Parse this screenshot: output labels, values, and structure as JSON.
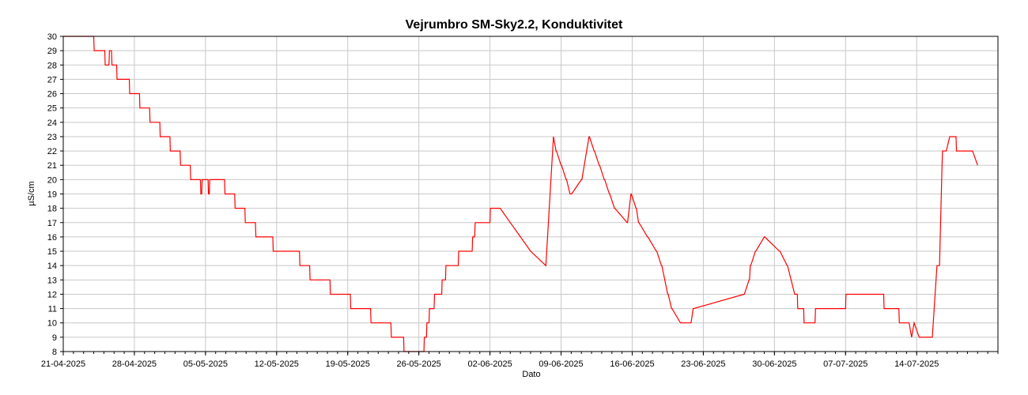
{
  "chart_data": {
    "type": "line",
    "title": "Vejrumbro SM-Sky2.2, Konduktivitet",
    "xlabel": "Dato",
    "ylabel": "µS/cm",
    "xlim": [
      "2025-04-21",
      "2025-07-22"
    ],
    "ylim": [
      8,
      30
    ],
    "yticks": [
      8,
      9,
      10,
      11,
      12,
      13,
      14,
      15,
      16,
      17,
      18,
      19,
      20,
      21,
      22,
      23,
      24,
      25,
      26,
      27,
      28,
      29,
      30
    ],
    "xticks": [
      "2025-04-21",
      "2025-04-28",
      "2025-05-05",
      "2025-05-12",
      "2025-05-19",
      "2025-05-26",
      "2025-06-02",
      "2025-06-09",
      "2025-06-16",
      "2025-06-23",
      "2025-06-30",
      "2025-07-07",
      "2025-07-14"
    ],
    "xtick_labels": [
      "21-04-2025",
      "28-04-2025",
      "05-05-2025",
      "12-05-2025",
      "19-05-2025",
      "26-05-2025",
      "02-06-2025",
      "09-06-2025",
      "16-06-2025",
      "23-06-2025",
      "30-06-2025",
      "07-07-2025",
      "14-07-2025"
    ],
    "grid": true,
    "colors": {
      "line": "#ff0000",
      "grid": "#c8c8c8",
      "axis": "#000000"
    },
    "series": [
      {
        "x": [
          "2025-04-21 00:00",
          "2025-04-24 00:00",
          "2025-04-24 01:00",
          "2025-04-25 02:00",
          "2025-04-25 03:00",
          "2025-04-25 12:00",
          "2025-04-25 13:00",
          "2025-04-25 18:00",
          "2025-04-25 19:00",
          "2025-04-26 00:00",
          "2025-04-26 01:00",
          "2025-04-26 06:00",
          "2025-04-26 07:00",
          "2025-04-27 12:00",
          "2025-04-27 13:00",
          "2025-04-28 00:00",
          "2025-04-28 01:00",
          "2025-04-28 12:00",
          "2025-04-28 13:00",
          "2025-04-28 18:00",
          "2025-04-28 19:00",
          "2025-04-29 12:00",
          "2025-04-29 13:00",
          "2025-04-30 12:00",
          "2025-04-30 13:00",
          "2025-05-01 12:00",
          "2025-05-01 13:00",
          "2025-05-02 12:00",
          "2025-05-02 13:00",
          "2025-05-03 12:00",
          "2025-05-03 13:00",
          "2025-05-03 18:00",
          "2025-05-03 19:00",
          "2025-05-04 12:00",
          "2025-05-04 13:00",
          "2025-05-04 15:00",
          "2025-05-04 16:00",
          "2025-05-05 06:00",
          "2025-05-05 07:00",
          "2025-05-05 09:00",
          "2025-05-05 10:00",
          "2025-05-06 21:00",
          "2025-05-06 22:00",
          "2025-05-07 21:00",
          "2025-05-07 22:00",
          "2025-05-08 21:00",
          "2025-05-08 22:00",
          "2025-05-09 12:00",
          "2025-05-09 13:00",
          "2025-05-09 22:00",
          "2025-05-09 23:00",
          "2025-05-11 15:00",
          "2025-05-11 16:00",
          "2025-05-12 21:00",
          "2025-05-12 22:00",
          "2025-05-14 06:00",
          "2025-05-14 07:00",
          "2025-05-15 06:00",
          "2025-05-15 07:00",
          "2025-05-17 06:00",
          "2025-05-17 07:00",
          "2025-05-19 06:00",
          "2025-05-19 07:00",
          "2025-05-21 06:00",
          "2025-05-21 07:00",
          "2025-05-23 06:00",
          "2025-05-23 07:00",
          "2025-05-23 12:00",
          "2025-05-23 13:00",
          "2025-05-24 12:00",
          "2025-05-24 13:00",
          "2025-05-25 06:00",
          "2025-05-25 07:00",
          "2025-05-26 12:00",
          "2025-05-26 13:00",
          "2025-05-26 18:00",
          "2025-05-26 19:00",
          "2025-05-27 00:00",
          "2025-05-27 01:00",
          "2025-05-27 12:00",
          "2025-05-27 13:00",
          "2025-05-27 15:00",
          "2025-05-27 16:00",
          "2025-05-28 06:00",
          "2025-05-28 07:00",
          "2025-05-28 15:00",
          "2025-05-28 16:00",
          "2025-05-29 21:00",
          "2025-05-29 22:00",
          "2025-05-31 06:00",
          "2025-05-31 07:00",
          "2025-05-31 12:00",
          "2025-05-31 13:00",
          "2025-06-02 00:00",
          "2025-06-02 01:00",
          "2025-06-03 00:00",
          "2025-06-04 00:00",
          "2025-06-05 00:00",
          "2025-06-06 00:00",
          "2025-06-07 12:00",
          "2025-06-08 06:00",
          "2025-06-08 12:00",
          "2025-06-08 13:00",
          "2025-06-09 00:00",
          "2025-06-09 01:00",
          "2025-06-09 12:00",
          "2025-06-09 13:00",
          "2025-06-09 21:00",
          "2025-06-09 22:00",
          "2025-06-10 00:00",
          "2025-06-10 01:00",
          "2025-06-11 00:00",
          "2025-06-11 01:00",
          "2025-06-11 18:00",
          "2025-06-11 19:00",
          "2025-06-12 06:00",
          "2025-06-12 07:00",
          "2025-06-12 18:00",
          "2025-06-12 19:00",
          "2025-06-13 06:00",
          "2025-06-13 07:00",
          "2025-06-13 18:00",
          "2025-06-13 19:00",
          "2025-06-14 06:00",
          "2025-06-14 07:00",
          "2025-06-15 12:00",
          "2025-06-15 13:00",
          "2025-06-15 21:00",
          "2025-06-15 22:00",
          "2025-06-16 09:00",
          "2025-06-16 10:00",
          "2025-06-16 15:00",
          "2025-06-16 16:00",
          "2025-06-17 12:00",
          "2025-06-17 13:00",
          "2025-06-18 09:00",
          "2025-06-18 10:00",
          "2025-06-18 21:00",
          "2025-06-18 22:00",
          "2025-06-19 12:00",
          "2025-06-19 13:00",
          "2025-06-19 21:00",
          "2025-06-19 22:00",
          "2025-06-20 18:00",
          "2025-06-21 00:00",
          "2025-06-21 01:00",
          "2025-06-21 12:00",
          "2025-06-21 13:00",
          "2025-06-21 18:00",
          "2025-06-21 19:00",
          "2025-06-22 00:00",
          "2025-06-22 01:00",
          "2025-06-27 00:00",
          "2025-06-27 01:00",
          "2025-06-27 12:00",
          "2025-06-27 13:00",
          "2025-06-27 15:00",
          "2025-06-27 16:00",
          "2025-06-28 03:00",
          "2025-06-28 04:00",
          "2025-06-29 00:00",
          "2025-06-29 01:00",
          "2025-06-30 12:00",
          "2025-06-30 13:00",
          "2025-07-01 06:00",
          "2025-07-01 07:00",
          "2025-07-02 00:00",
          "2025-07-02 06:00",
          "2025-07-02 07:00",
          "2025-07-02 21:00",
          "2025-07-02 22:00",
          "2025-07-03 12:00",
          "2025-07-03 13:00",
          "2025-07-04 00:00",
          "2025-07-04 01:00",
          "2025-07-07 00:00",
          "2025-07-07 01:00",
          "2025-07-07 18:00",
          "2025-07-07 19:00",
          "2025-07-10 18:00",
          "2025-07-10 19:00",
          "2025-07-10 21:00",
          "2025-07-10 22:00",
          "2025-07-12 06:00",
          "2025-07-12 07:00",
          "2025-07-13 06:00",
          "2025-07-13 12:00",
          "2025-07-13 18:00",
          "2025-07-14 06:00",
          "2025-07-15 12:00",
          "2025-07-15 13:00",
          "2025-07-16 00:00",
          "2025-07-16 06:00",
          "2025-07-16 12:00",
          "2025-07-16 13:00",
          "2025-07-16 21:00",
          "2025-07-16 22:00",
          "2025-07-17 06:00",
          "2025-07-17 07:00",
          "2025-07-17 21:00",
          "2025-07-17 22:00",
          "2025-07-18 21:00",
          "2025-07-18 22:00",
          "2025-07-19 12:00",
          "2025-07-20 00:00"
        ],
        "y": [
          30,
          30,
          29,
          29,
          28,
          28,
          29,
          29,
          28,
          28,
          28,
          28,
          27,
          27,
          26,
          26,
          26,
          26,
          25,
          25,
          25,
          25,
          24,
          24,
          23,
          23,
          22,
          22,
          21,
          21,
          20,
          20,
          20,
          20,
          19,
          19,
          20,
          20,
          19,
          19,
          20,
          20,
          19,
          19,
          18,
          18,
          17,
          17,
          17,
          17,
          16,
          16,
          15,
          15,
          15,
          15,
          14,
          14,
          13,
          13,
          12,
          12,
          11,
          11,
          10,
          10,
          9,
          9,
          9,
          9,
          8,
          8,
          8,
          8,
          9,
          9,
          10,
          10,
          11,
          11,
          12,
          12,
          12,
          12,
          13,
          13,
          14,
          14,
          15,
          15,
          16,
          16,
          17,
          17,
          18,
          18,
          17,
          16,
          15,
          14,
          23,
          22,
          22,
          21,
          21,
          20,
          20,
          19,
          19,
          19,
          19,
          20,
          20,
          23,
          23,
          22,
          22,
          21,
          21,
          20,
          20,
          19,
          19,
          18,
          18,
          17,
          17,
          19,
          19,
          18,
          18,
          17,
          17,
          16,
          16,
          15,
          15,
          14,
          14,
          12,
          12,
          11,
          11,
          10,
          10,
          10,
          10,
          10,
          10,
          10,
          11,
          11,
          12,
          12,
          13,
          13,
          14,
          14,
          15,
          15,
          16,
          16,
          15,
          15,
          14,
          14,
          12,
          12,
          11,
          11,
          10,
          10,
          10,
          10,
          11,
          11,
          12,
          12,
          12,
          12,
          11,
          11,
          11,
          11,
          10,
          10,
          9,
          10,
          9,
          9,
          9,
          14,
          14,
          21,
          22,
          22,
          22,
          23,
          23,
          23,
          22,
          22,
          22,
          22,
          21
        ]
      }
    ]
  }
}
